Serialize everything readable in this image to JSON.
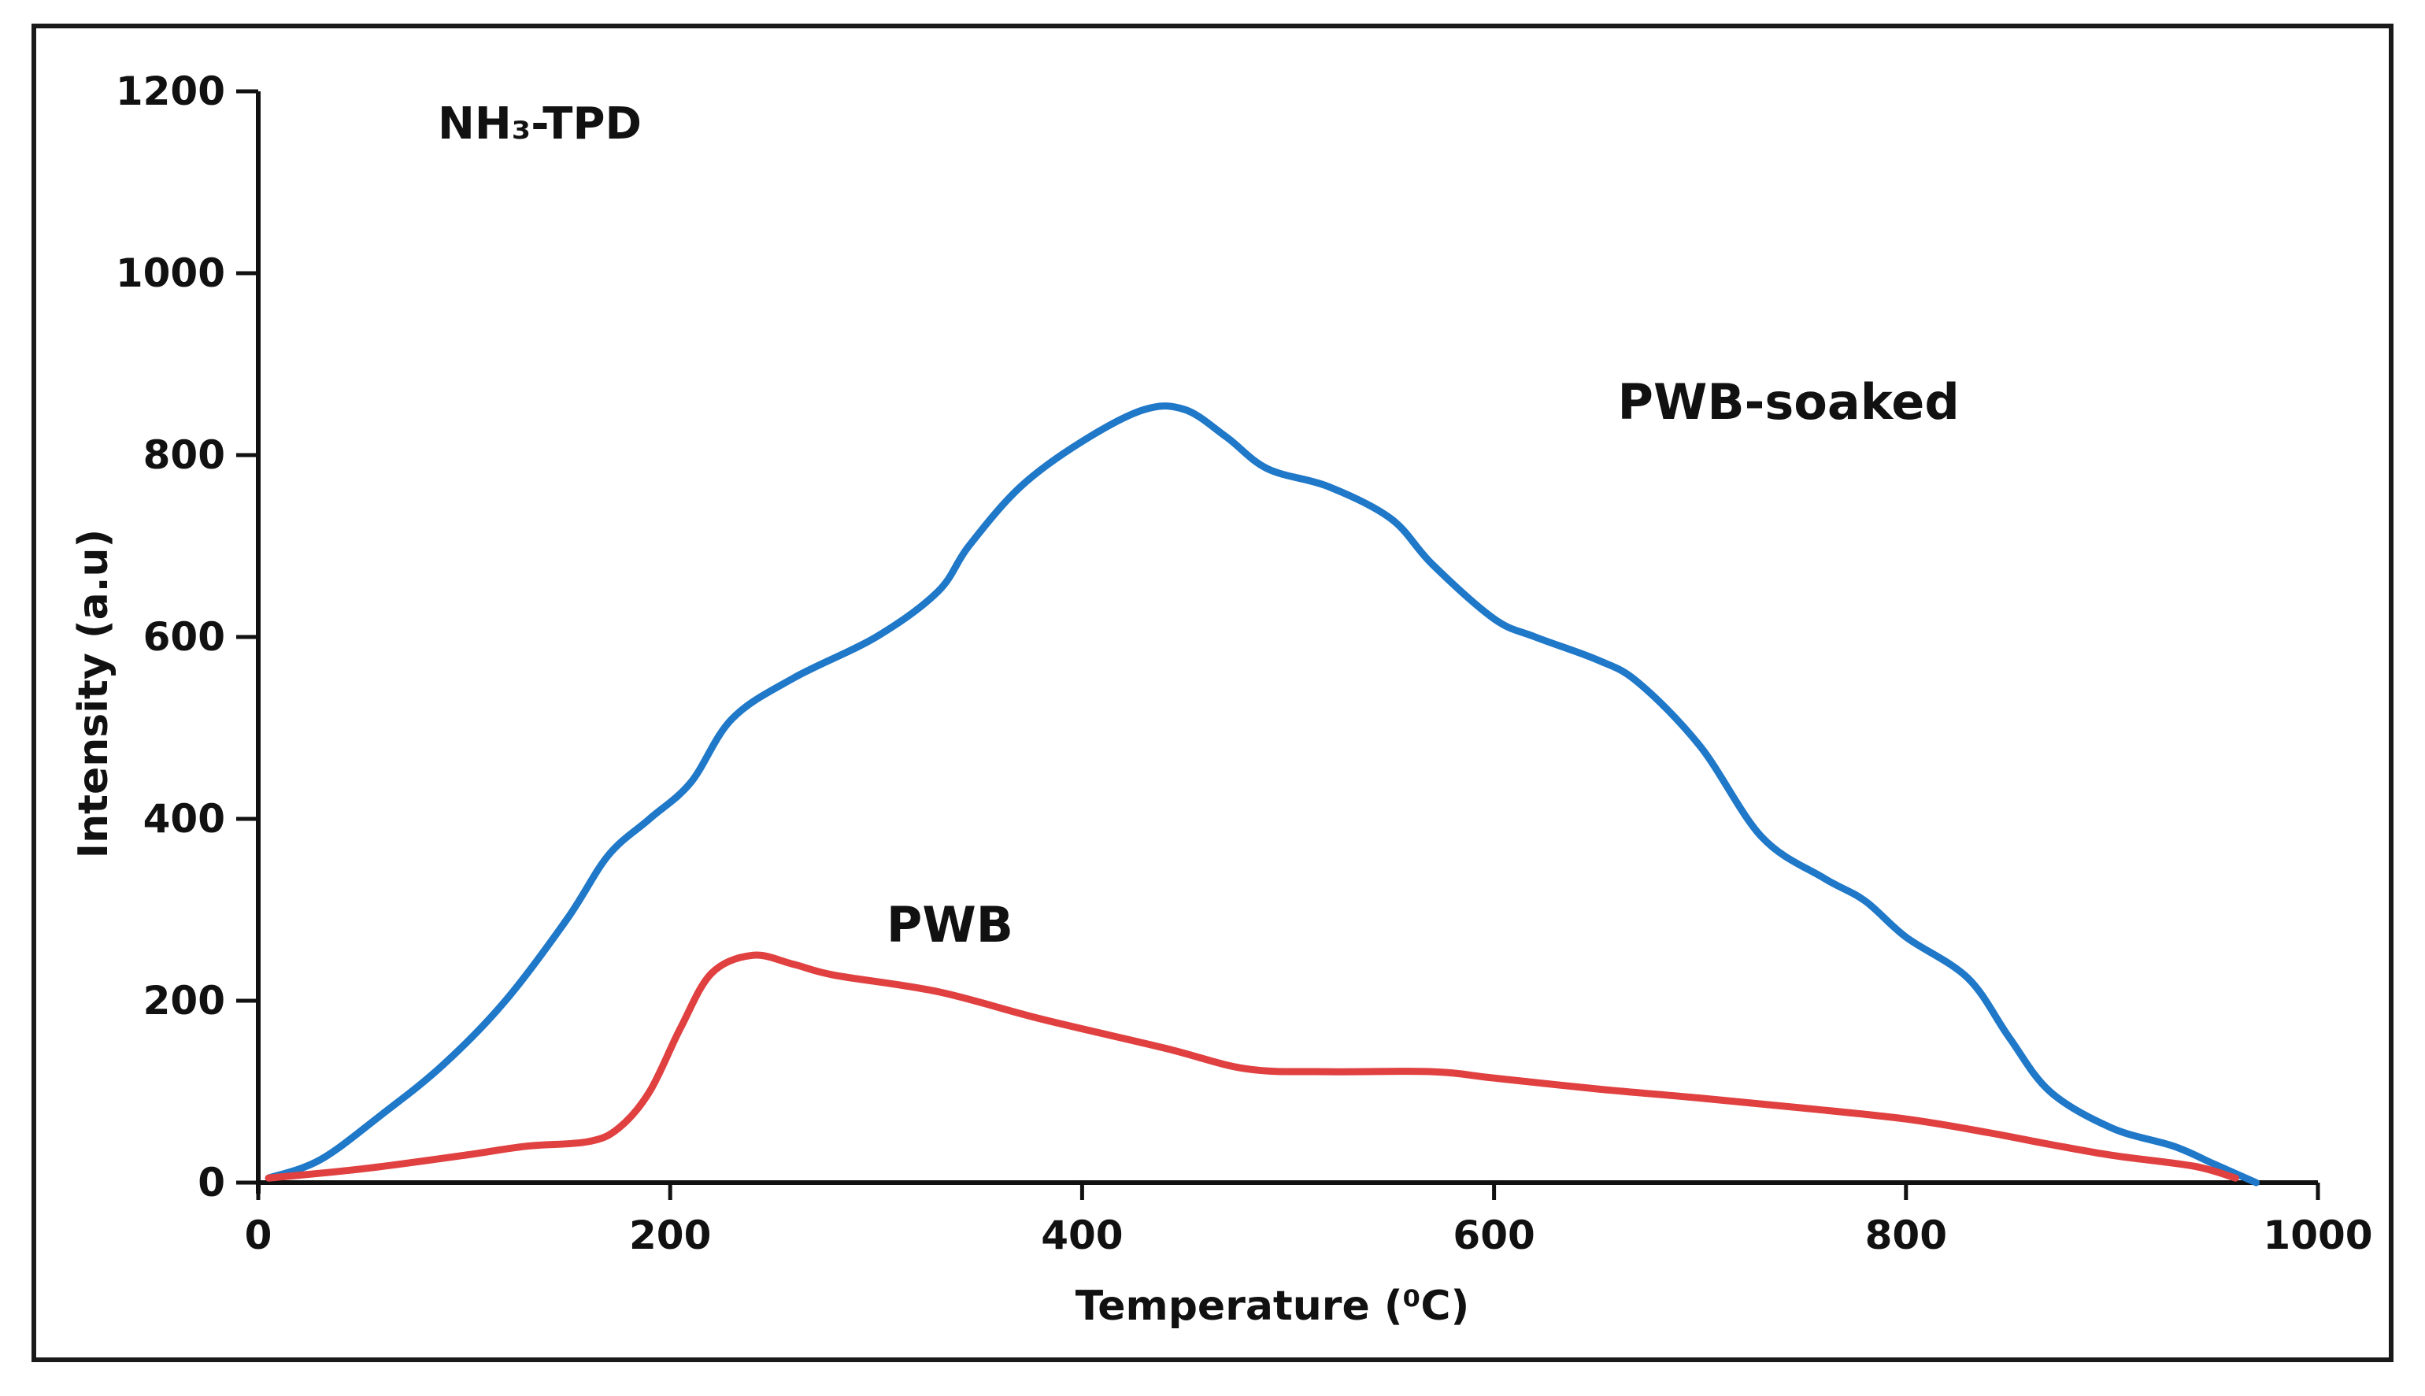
{
  "chart_data": {
    "type": "line",
    "title": "",
    "annotation": "NH₃-TPD",
    "xlabel": "Temperature (⁰C)",
    "ylabel": "Intensity (a.u)",
    "xlim": [
      0,
      1000
    ],
    "ylim": [
      0,
      1200
    ],
    "xticks": [
      0,
      200,
      400,
      600,
      800,
      1000
    ],
    "yticks": [
      0,
      200,
      400,
      600,
      800,
      1000,
      1200
    ],
    "grid": false,
    "legend": "inline labels",
    "series": [
      {
        "name": "PWB-soaked",
        "color": "#1f78c8",
        "x": [
          5,
          30,
          60,
          90,
          120,
          150,
          170,
          190,
          210,
          230,
          260,
          300,
          330,
          345,
          370,
          400,
          430,
          450,
          470,
          490,
          520,
          550,
          570,
          600,
          620,
          650,
          670,
          700,
          730,
          760,
          780,
          800,
          830,
          850,
          870,
          900,
          930,
          950,
          965,
          970
        ],
        "y": [
          5,
          25,
          75,
          130,
          200,
          290,
          360,
          400,
          440,
          510,
          555,
          600,
          650,
          700,
          765,
          815,
          850,
          850,
          820,
          785,
          765,
          730,
          680,
          620,
          600,
          575,
          550,
          480,
          380,
          335,
          310,
          270,
          225,
          160,
          100,
          60,
          40,
          20,
          5,
          0
        ],
        "label_position": [
          660,
          840
        ]
      },
      {
        "name": "PWB",
        "color": "#e04040",
        "x": [
          5,
          50,
          100,
          130,
          160,
          175,
          190,
          205,
          220,
          240,
          260,
          280,
          330,
          380,
          440,
          480,
          520,
          570,
          600,
          650,
          700,
          750,
          800,
          840,
          870,
          900,
          940,
          960
        ],
        "y": [
          5,
          15,
          30,
          40,
          45,
          60,
          100,
          170,
          230,
          250,
          240,
          228,
          210,
          180,
          148,
          125,
          122,
          122,
          115,
          103,
          93,
          82,
          70,
          55,
          42,
          30,
          18,
          5
        ],
        "label_position": [
          305,
          265
        ]
      }
    ]
  }
}
